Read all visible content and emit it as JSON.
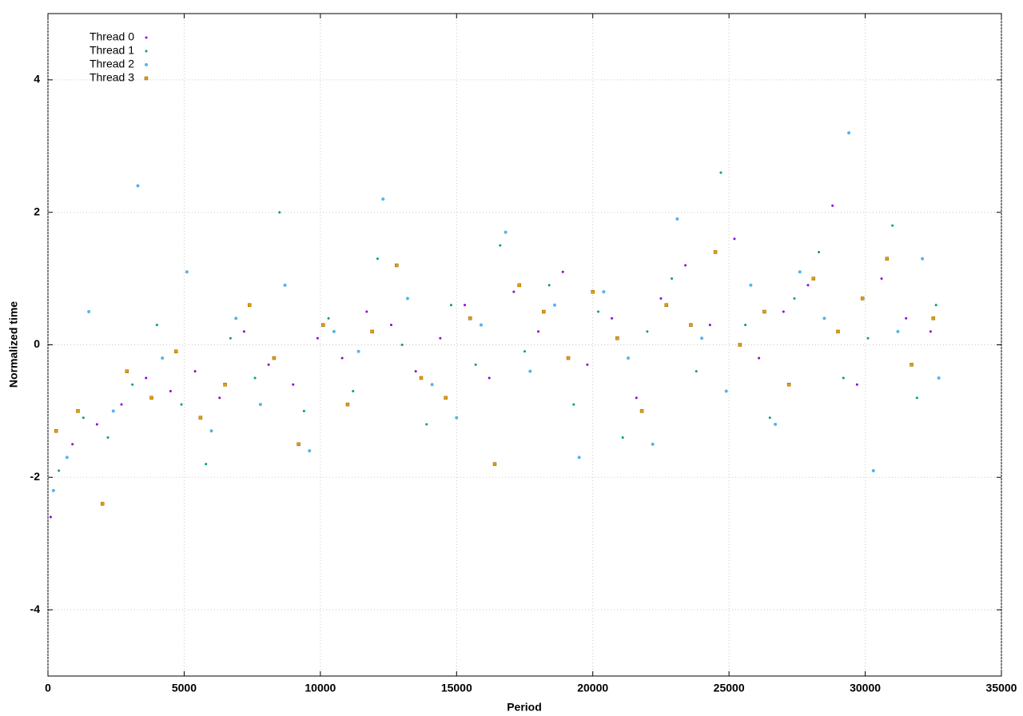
{
  "chart_data": {
    "type": "scatter",
    "x_label": "Period",
    "y_label": "Normalized time",
    "xlim": [
      0,
      35000
    ],
    "ylim": [
      -5,
      5
    ],
    "xticks": [
      0,
      5000,
      10000,
      15000,
      20000,
      25000,
      30000,
      35000
    ],
    "yticks": [
      -4,
      -2,
      0,
      2,
      4
    ],
    "grid": true,
    "legend": "top-left",
    "series": [
      {
        "name": "Thread 0",
        "color": "#9400d3",
        "marker": "dot",
        "x": [
          100,
          900,
          1800,
          2700,
          3600,
          4500,
          5400,
          6300,
          7200,
          8100,
          9000,
          9900,
          10800,
          11700,
          12600,
          13500,
          14400,
          15300,
          16200,
          17100,
          18000,
          18900,
          19800,
          20700,
          21600,
          22500,
          23400,
          24300,
          25200,
          26100,
          27000,
          27900,
          28800,
          29700,
          30600,
          31500,
          32400
        ],
        "y": [
          -2.6,
          -1.5,
          -1.2,
          -0.9,
          -0.5,
          -0.7,
          -0.4,
          -0.8,
          0.2,
          -0.3,
          -0.6,
          0.1,
          -0.2,
          0.5,
          0.3,
          -0.4,
          0.1,
          0.6,
          -0.5,
          0.8,
          0.2,
          1.1,
          -0.3,
          0.4,
          -0.8,
          0.7,
          1.2,
          0.3,
          1.6,
          -0.2,
          0.5,
          0.9,
          2.1,
          -0.6,
          1.0,
          0.4,
          0.2
        ]
      },
      {
        "name": "Thread 1",
        "color": "#009e73",
        "marker": "dot",
        "x": [
          400,
          1300,
          2200,
          3100,
          4000,
          4900,
          5800,
          6700,
          7600,
          8500,
          9400,
          10300,
          11200,
          12100,
          13000,
          13900,
          14800,
          15700,
          16600,
          17500,
          18400,
          19300,
          20200,
          21100,
          22000,
          22900,
          23800,
          24700,
          25600,
          26500,
          27400,
          28300,
          29200,
          30100,
          31000,
          31900,
          32600
        ],
        "y": [
          -1.9,
          -1.1,
          -1.4,
          -0.6,
          0.3,
          -0.9,
          -1.8,
          0.1,
          -0.5,
          2.0,
          -1.0,
          0.4,
          -0.7,
          1.3,
          0.0,
          -1.2,
          0.6,
          -0.3,
          1.5,
          -0.1,
          0.9,
          -0.9,
          0.5,
          -1.4,
          0.2,
          1.0,
          -0.4,
          2.6,
          0.3,
          -1.1,
          0.7,
          1.4,
          -0.5,
          0.1,
          1.8,
          -0.8,
          0.6
        ]
      },
      {
        "name": "Thread 2",
        "color": "#56b4e9",
        "marker": "circle",
        "x": [
          200,
          700,
          1500,
          2400,
          3300,
          4200,
          5100,
          6000,
          6900,
          7800,
          8700,
          9600,
          10500,
          11400,
          12300,
          13200,
          14100,
          15000,
          15900,
          16800,
          17700,
          18600,
          19500,
          20400,
          21300,
          22200,
          23100,
          24000,
          24900,
          25800,
          26700,
          27600,
          28500,
          29400,
          30300,
          31200,
          32100,
          32700
        ],
        "y": [
          -2.2,
          -1.7,
          0.5,
          -1.0,
          2.4,
          -0.2,
          1.1,
          -1.3,
          0.4,
          -0.9,
          0.9,
          -1.6,
          0.2,
          -0.1,
          2.2,
          0.7,
          -0.6,
          -1.1,
          0.3,
          1.7,
          -0.4,
          0.6,
          -1.7,
          0.8,
          -0.2,
          -1.5,
          1.9,
          0.1,
          -0.7,
          0.9,
          -1.2,
          1.1,
          0.4,
          3.2,
          -1.9,
          0.2,
          1.3,
          -0.5
        ]
      },
      {
        "name": "Thread 3",
        "color": "#e69f00",
        "marker": "square",
        "x": [
          300,
          1100,
          2000,
          2900,
          3800,
          4700,
          5600,
          6500,
          7400,
          8300,
          9200,
          10100,
          11000,
          11900,
          12800,
          13700,
          14600,
          15500,
          16400,
          17300,
          18200,
          19100,
          20000,
          20900,
          21800,
          22700,
          23600,
          24500,
          25400,
          26300,
          27200,
          28100,
          29000,
          29900,
          30800,
          31700,
          32500
        ],
        "y": [
          -1.3,
          -1.0,
          -2.4,
          -0.4,
          -0.8,
          -0.1,
          -1.1,
          -0.6,
          0.6,
          -0.2,
          -1.5,
          0.3,
          -0.9,
          0.2,
          1.2,
          -0.5,
          -0.8,
          0.4,
          -1.8,
          0.9,
          0.5,
          -0.2,
          0.8,
          0.1,
          -1.0,
          0.6,
          0.3,
          1.4,
          0.0,
          0.5,
          -0.6,
          1.0,
          0.2,
          0.7,
          1.3,
          -0.3,
          0.4
        ]
      }
    ]
  }
}
